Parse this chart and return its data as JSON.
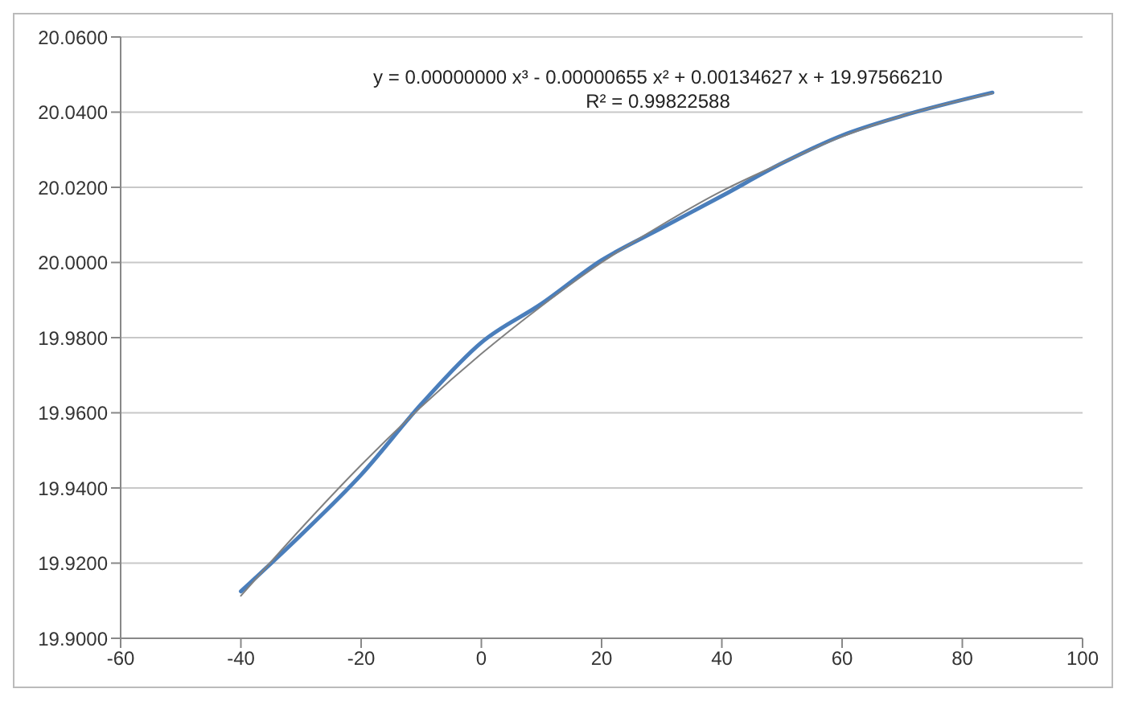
{
  "chart_data": {
    "type": "line",
    "xlim": [
      -60,
      100
    ],
    "xticks": [
      -60,
      -40,
      -20,
      0,
      20,
      40,
      60,
      80,
      100
    ],
    "ylim": [
      19.9,
      20.06
    ],
    "yticks": [
      {
        "value": 19.9,
        "label": "19.9000"
      },
      {
        "value": 19.92,
        "label": "19.9200"
      },
      {
        "value": 19.94,
        "label": "19.9400"
      },
      {
        "value": 19.96,
        "label": "19.9600"
      },
      {
        "value": 19.98,
        "label": "19.9800"
      },
      {
        "value": 20.0,
        "label": "20.0000"
      },
      {
        "value": 20.02,
        "label": "20.0200"
      },
      {
        "value": 20.04,
        "label": "20.0400"
      },
      {
        "value": 20.06,
        "label": "20.0600"
      }
    ],
    "grid": "y",
    "marker": "none",
    "line_style": "solid",
    "annotations": [
      "y = 0.00000000 x³ - 0.00000655 x² + 0.00134627 x + 19.97566210",
      "R² = 0.99822588"
    ],
    "series": [
      {
        "color": "#4a7ebb",
        "x": [
          -40,
          -30,
          -20,
          -10,
          0,
          10,
          20,
          30,
          40,
          50,
          60,
          70,
          85
        ],
        "values": [
          19.9125,
          19.9275,
          19.9435,
          19.9623,
          19.9787,
          19.989,
          20.0006,
          20.0092,
          20.0177,
          20.0264,
          20.0338,
          20.039,
          20.0452
        ]
      },
      {
        "color": "#808080",
        "x": [
          -40,
          -30,
          -20,
          -10,
          0,
          10,
          20,
          30,
          40,
          50,
          60,
          70,
          85
        ],
        "values": [
          19.9113,
          19.9292,
          19.9461,
          19.9616,
          19.9757,
          19.9884,
          20.0,
          20.01,
          20.019,
          20.0265,
          20.0335,
          20.039,
          20.045
        ]
      }
    ]
  }
}
